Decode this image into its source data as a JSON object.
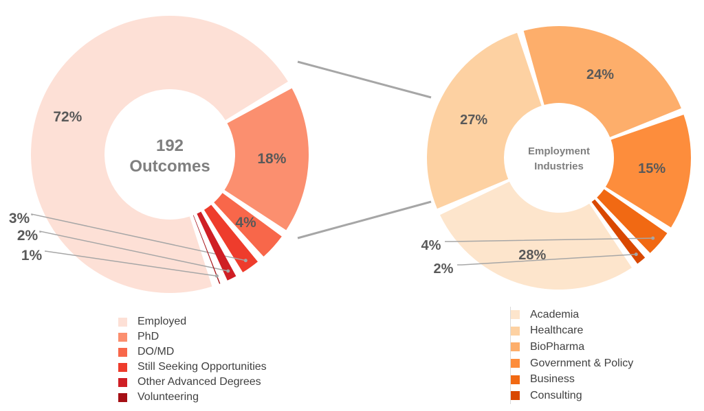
{
  "chart_data": [
    {
      "type": "pie",
      "style": "donut",
      "center_text": [
        "192",
        "Outcomes"
      ],
      "categories": [
        "Employed",
        "PhD",
        "DO/MD",
        "Still Seeking Opportunities",
        "Other Advanced Degrees",
        "Volunteering"
      ],
      "values": [
        72,
        18,
        4,
        3,
        2,
        1
      ],
      "labels": [
        "72%",
        "18%",
        "4%",
        "3%",
        "2%",
        "1%"
      ],
      "colors": [
        "#fde0d6",
        "#fb8f6f",
        "#f8674a",
        "#ee3c2c",
        "#cf1f25",
        "#a50f15"
      ],
      "legend": "bottom"
    },
    {
      "type": "pie",
      "style": "donut",
      "center_text": [
        "Employment",
        "Industries"
      ],
      "categories": [
        "Academia",
        "Healthcare",
        "BioPharma",
        "Government & Policy",
        "Business",
        "Consulting"
      ],
      "values": [
        28,
        27,
        24,
        15,
        4,
        2
      ],
      "labels": [
        "28%",
        "27%",
        "24%",
        "15%",
        "4%",
        "2%"
      ],
      "colors": [
        "#fde5cc",
        "#fdd1a2",
        "#fdae6b",
        "#fd8d3c",
        "#f16913",
        "#d94801"
      ],
      "legend": "bottom-right"
    }
  ]
}
